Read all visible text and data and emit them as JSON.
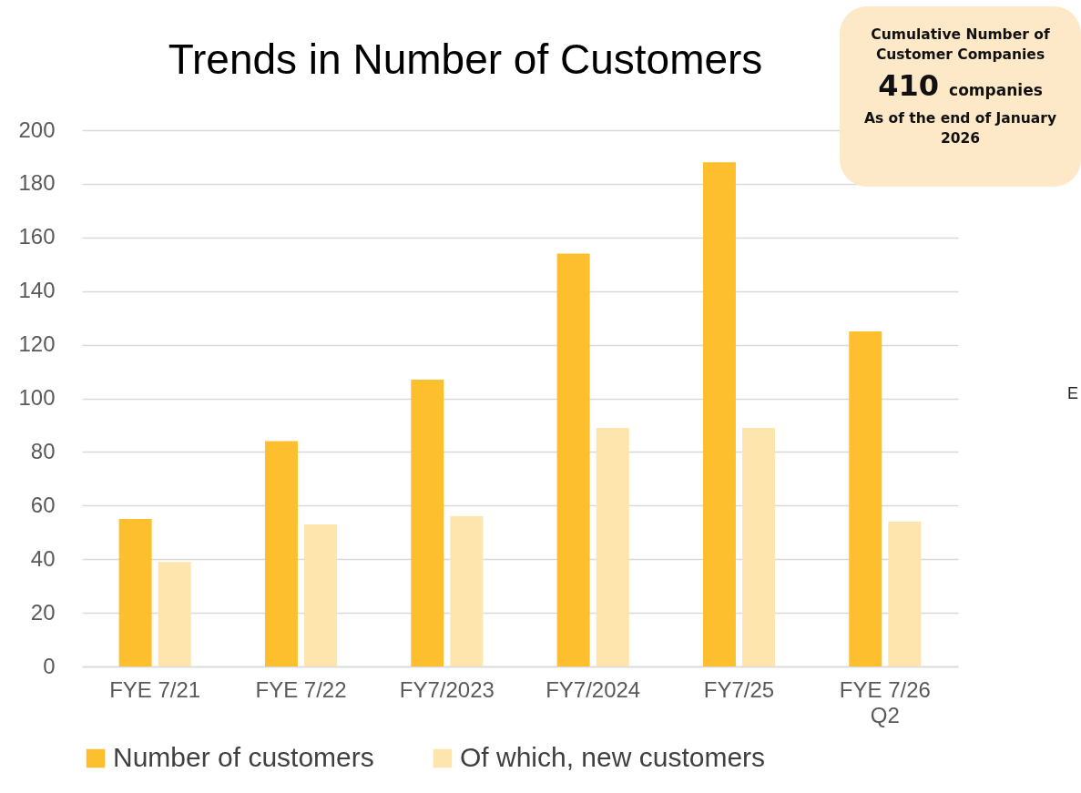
{
  "chart_data": {
    "type": "bar",
    "title": "Trends in Number of Customers",
    "categories": [
      "FYE 7/21",
      "FYE 7/22",
      "FY7/2023",
      "FY7/2024",
      "FY7/25",
      "FYE 7/26 Q2"
    ],
    "series": [
      {
        "name": "Number of customers",
        "color": "#fdbf2d",
        "values": [
          55,
          84,
          107,
          154,
          188,
          125
        ]
      },
      {
        "name": "Of which, new customers",
        "color": "#fde5ad",
        "values": [
          39,
          53,
          56,
          89,
          89,
          54
        ]
      }
    ],
    "ylim": [
      0,
      200
    ],
    "yticks": [
      0,
      20,
      40,
      60,
      80,
      100,
      120,
      140,
      160,
      180,
      200
    ],
    "grid": "y",
    "legend": "bottom",
    "annotations": [
      "Cumulative Number of Customer Companies",
      "410",
      "companies",
      "As of the end of January 2026",
      "E"
    ]
  }
}
